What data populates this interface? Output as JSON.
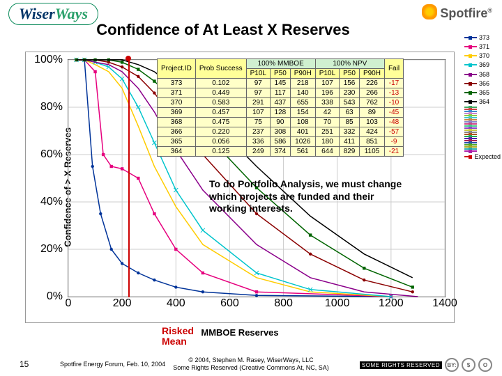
{
  "header": {
    "logo_left_a": "Wiser",
    "logo_left_b": "Ways",
    "logo_right": "Spotfire",
    "title": "Confidence of At Least X Reserves"
  },
  "chart": {
    "type": "line",
    "ylabel": "Confidence of > X Reserves",
    "xlabel": "MMBOE Reserves",
    "xlim": [
      0,
      1400
    ],
    "xtick_step": 200,
    "ylim": [
      0,
      100
    ],
    "ytick_step": 20,
    "ytick_suffix": "%",
    "background_color": "#ffffff",
    "grid_color": "#cccccc",
    "series": [
      {
        "id": "373",
        "color": "#003399",
        "marker": "circle",
        "values": [
          [
            30,
            100
          ],
          [
            60,
            100
          ],
          [
            90,
            55
          ],
          [
            120,
            35
          ],
          [
            160,
            20
          ],
          [
            200,
            14
          ],
          [
            260,
            10
          ],
          [
            320,
            7
          ],
          [
            400,
            4
          ],
          [
            500,
            2
          ],
          [
            700,
            0.5
          ],
          [
            1200,
            0
          ]
        ]
      },
      {
        "id": "371",
        "color": "#e6007e",
        "marker": "square",
        "values": [
          [
            30,
            100
          ],
          [
            60,
            100
          ],
          [
            100,
            95
          ],
          [
            130,
            60
          ],
          [
            160,
            55
          ],
          [
            200,
            54
          ],
          [
            260,
            50
          ],
          [
            320,
            35
          ],
          [
            400,
            20
          ],
          [
            500,
            10
          ],
          [
            700,
            2
          ],
          [
            1200,
            0
          ]
        ]
      },
      {
        "id": "370",
        "color": "#ffcc00",
        "marker": "diamond",
        "values": [
          [
            30,
            100
          ],
          [
            60,
            100
          ],
          [
            100,
            98
          ],
          [
            150,
            95
          ],
          [
            200,
            88
          ],
          [
            260,
            72
          ],
          [
            320,
            55
          ],
          [
            400,
            38
          ],
          [
            500,
            22
          ],
          [
            700,
            8
          ],
          [
            900,
            2
          ],
          [
            1200,
            0
          ]
        ]
      },
      {
        "id": "369",
        "color": "#00c4cc",
        "marker": "x",
        "values": [
          [
            30,
            100
          ],
          [
            60,
            100
          ],
          [
            100,
            99
          ],
          [
            150,
            97
          ],
          [
            200,
            92
          ],
          [
            260,
            80
          ],
          [
            320,
            65
          ],
          [
            400,
            45
          ],
          [
            500,
            28
          ],
          [
            700,
            10
          ],
          [
            900,
            3
          ],
          [
            1200,
            0
          ]
        ]
      },
      {
        "id": "368",
        "color": "#8b008b",
        "marker": "triangle",
        "values": [
          [
            30,
            100
          ],
          [
            60,
            100
          ],
          [
            100,
            99
          ],
          [
            150,
            98
          ],
          [
            200,
            95
          ],
          [
            260,
            88
          ],
          [
            320,
            78
          ],
          [
            400,
            62
          ],
          [
            500,
            45
          ],
          [
            700,
            22
          ],
          [
            900,
            8
          ],
          [
            1100,
            2
          ],
          [
            1300,
            0
          ]
        ]
      },
      {
        "id": "366",
        "color": "#8B0000",
        "marker": "circle",
        "values": [
          [
            30,
            100
          ],
          [
            60,
            100
          ],
          [
            100,
            100
          ],
          [
            150,
            99
          ],
          [
            200,
            97
          ],
          [
            260,
            93
          ],
          [
            320,
            86
          ],
          [
            400,
            74
          ],
          [
            500,
            60
          ],
          [
            700,
            35
          ],
          [
            900,
            18
          ],
          [
            1100,
            7
          ],
          [
            1280,
            2
          ]
        ]
      },
      {
        "id": "365",
        "color": "#006400",
        "marker": "square",
        "values": [
          [
            30,
            100
          ],
          [
            60,
            100
          ],
          [
            100,
            100
          ],
          [
            150,
            100
          ],
          [
            200,
            99
          ],
          [
            260,
            96
          ],
          [
            320,
            91
          ],
          [
            400,
            82
          ],
          [
            500,
            70
          ],
          [
            700,
            46
          ],
          [
            900,
            26
          ],
          [
            1100,
            12
          ],
          [
            1280,
            4
          ]
        ]
      },
      {
        "id": "364",
        "color": "#000000",
        "marker": "diamond",
        "values": [
          [
            30,
            100
          ],
          [
            60,
            100
          ],
          [
            100,
            100
          ],
          [
            150,
            100
          ],
          [
            200,
            100
          ],
          [
            260,
            98
          ],
          [
            320,
            95
          ],
          [
            400,
            88
          ],
          [
            500,
            78
          ],
          [
            700,
            55
          ],
          [
            900,
            34
          ],
          [
            1100,
            18
          ],
          [
            1280,
            8
          ]
        ]
      }
    ]
  },
  "legend_extra_rows": 22,
  "legend_expected": "Expected",
  "table": {
    "header_group_a": "100% MMBOE",
    "header_group_b": "100% NPV",
    "columns": [
      "Project.ID",
      "Prob Success",
      "P10L",
      "P50",
      "P90H",
      "P10L",
      "P50",
      "P90H",
      "Fail"
    ],
    "rows": [
      [
        "373",
        "0.102",
        "97",
        "145",
        "218",
        "107",
        "156",
        "226",
        "-17"
      ],
      [
        "371",
        "0.449",
        "97",
        "117",
        "140",
        "196",
        "230",
        "266",
        "-13"
      ],
      [
        "370",
        "0.583",
        "291",
        "437",
        "655",
        "338",
        "543",
        "762",
        "-10"
      ],
      [
        "369",
        "0.457",
        "107",
        "128",
        "154",
        "42",
        "63",
        "89",
        "-45"
      ],
      [
        "368",
        "0.475",
        "75",
        "90",
        "108",
        "70",
        "85",
        "103",
        "-48"
      ],
      [
        "366",
        "0.220",
        "237",
        "308",
        "401",
        "251",
        "332",
        "424",
        "-57"
      ],
      [
        "365",
        "0.056",
        "336",
        "586",
        "1026",
        "180",
        "411",
        "851",
        "-9"
      ],
      [
        "364",
        "0.125",
        "249",
        "374",
        "561",
        "644",
        "829",
        "1105",
        "-21"
      ]
    ]
  },
  "callout_text": "To do Portfolio Analysis, we must change which projects are funded and their working interests.",
  "risked_mean_label": "Risked\nMean",
  "footer": {
    "slide_no": "15",
    "event": "Spotfire Energy Forum, Feb. 10, 2004",
    "copyright_a": "© 2004, Stephen M. Rasey, WiserWays, LLC",
    "copyright_b": "Some Rights Reserved (Creative Commons At, NC, SA)",
    "cc_srr": "SOME RIGHTS RESERVED",
    "cc_icons": [
      "BY:",
      "$",
      "O"
    ]
  }
}
